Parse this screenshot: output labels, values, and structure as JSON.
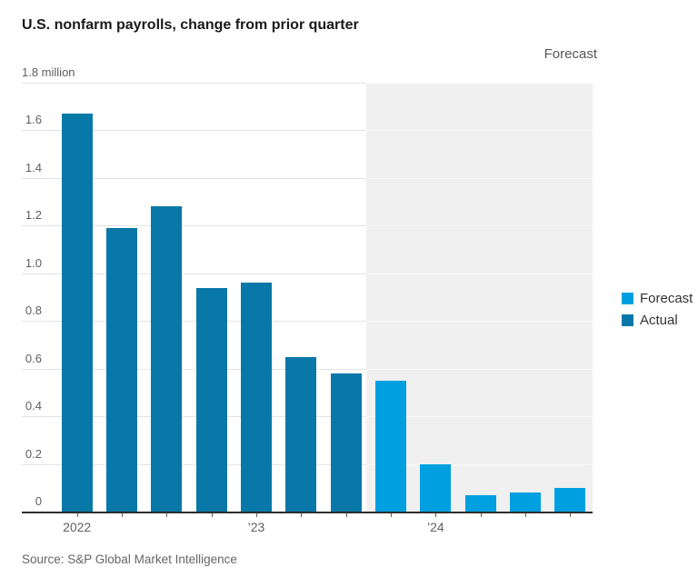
{
  "annotations": {
    "forecast_region_label": "Forecast"
  },
  "legend": {
    "items": [
      {
        "label": "Forecast",
        "color": "#00a0e0"
      },
      {
        "label": "Actual",
        "color": "#0878a8"
      }
    ]
  },
  "source": "Source: S&P Global Market Intelligence",
  "chart_data": {
    "type": "bar",
    "title": "U.S. nonfarm payrolls, change from prior quarter",
    "unit": "million",
    "categories": [
      "2022 Q1",
      "2022 Q2",
      "2022 Q3",
      "2022 Q4",
      "2023 Q1",
      "2023 Q2",
      "2023 Q3",
      "2023 Q4",
      "2024 Q1",
      "2024 Q2",
      "2024 Q3",
      "2024 Q4"
    ],
    "values": [
      1.67,
      1.19,
      1.28,
      0.94,
      0.96,
      0.65,
      0.58,
      0.55,
      0.2,
      0.07,
      0.08,
      0.1
    ],
    "bar_series": [
      "Actual",
      "Actual",
      "Actual",
      "Actual",
      "Actual",
      "Actual",
      "Actual",
      "Forecast",
      "Forecast",
      "Forecast",
      "Forecast",
      "Forecast"
    ],
    "series_colors": {
      "Actual": "#0878a8",
      "Forecast": "#00a0e0"
    },
    "y_ticks": [
      {
        "value": 1.8,
        "label": "1.8 million"
      },
      {
        "value": 1.6,
        "label": "1.6"
      },
      {
        "value": 1.4,
        "label": "1.4"
      },
      {
        "value": 1.2,
        "label": "1.2"
      },
      {
        "value": 1.0,
        "label": "1.0"
      },
      {
        "value": 0.8,
        "label": "0.8"
      },
      {
        "value": 0.6,
        "label": "0.6"
      },
      {
        "value": 0.4,
        "label": "0.4"
      },
      {
        "value": 0.2,
        "label": "0.2"
      },
      {
        "value": 0,
        "label": "0"
      }
    ],
    "x_ticks": [
      {
        "index": 0,
        "label": "2022"
      },
      {
        "index": 4,
        "label": "’23"
      },
      {
        "index": 8,
        "label": "’24"
      }
    ],
    "ylim": [
      0,
      1.8
    ],
    "grid": true,
    "legend_position": "right",
    "shade_region": {
      "label": "Forecast",
      "start_index": 7,
      "color": "#f0f0f1"
    },
    "grid_color_on_white": "#e3e3e4",
    "grid_color_on_shade": "#fafafa"
  }
}
